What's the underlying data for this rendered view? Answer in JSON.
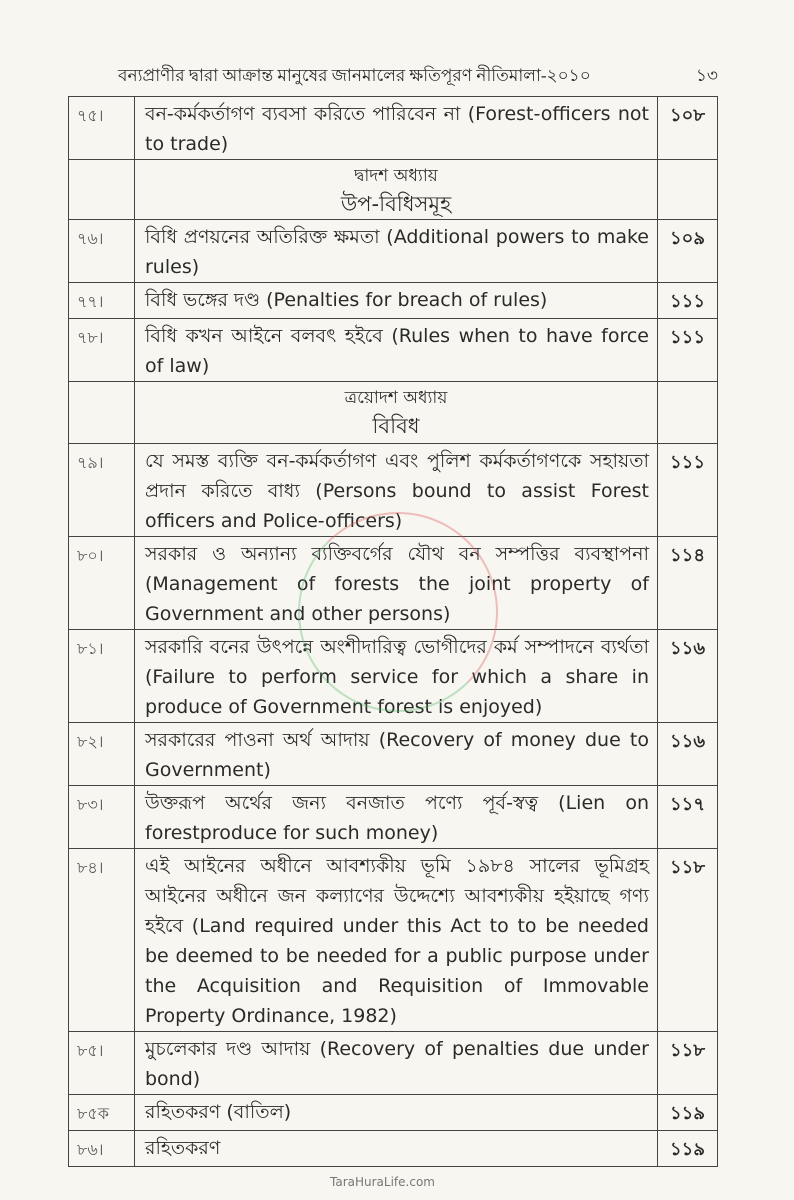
{
  "header": {
    "title": "বন্যপ্রাণীর দ্বারা আক্রান্ত মানুষের জানমালের ক্ষতিপূরণ নীতিমালা-২০১০",
    "page_number": "১৩"
  },
  "rows": [
    {
      "num": "৭৫।",
      "text": "বন-কর্মকর্তাগণ ব্যবসা করিতে পারিবেন না (Forest-officers not to trade)",
      "page": "১০৮"
    },
    {
      "chapter": "দ্বাদশ অধ্যায়",
      "chapter_title": "উপ-বিধিসমূহ"
    },
    {
      "num": "৭৬।",
      "text": "বিধি প্রণয়নের অতিরিক্ত ক্ষমতা (Additional powers to make rules)",
      "page": "১০৯"
    },
    {
      "num": "৭৭।",
      "text": "বিধি ভঙ্গের দণ্ড (Penalties for breach of rules)",
      "page": "১১১"
    },
    {
      "num": "৭৮।",
      "text": "বিধি কখন আইনে বলবৎ হইবে (Rules when to have force of law)",
      "page": "১১১"
    },
    {
      "chapter": "ত্রয়োদশ অধ্যায়",
      "chapter_title": "বিবিধ"
    },
    {
      "num": "৭৯।",
      "text": "যে সমস্ত ব্যক্তি বন-কর্মকর্তাগণ এবং পুলিশ কর্মকর্তাগণকে সহায়তা প্রদান করিতে বাধ্য (Persons bound to assist Forest officers and Police-officers)",
      "page": "১১১"
    },
    {
      "num": "৮০।",
      "text": "সরকার ও অন্যান্য ব্যক্তিবর্গের যৌথ বন সম্পত্তির ব্যবস্থাপনা (Management of forests the joint property of Government and other persons)",
      "page": "১১৪"
    },
    {
      "num": "৮১।",
      "text": "সরকারি বনের উৎপন্নে অংশীদারিত্ব ভোগীদের কর্ম সম্পাদনে ব্যর্থতা (Failure to perform service for which a share in produce of Government forest is enjoyed)",
      "page": "১১৬"
    },
    {
      "num": "৮২।",
      "text": "সরকারের পাওনা অর্থ আদায় (Recovery of money due to Government)",
      "page": "১১৬"
    },
    {
      "num": "৮৩।",
      "text": "উক্তরূপ অর্থের জন্য বনজাত পণ্যে পূর্ব-স্বত্ব (Lien on forestproduce for such money)",
      "page": "১১৭"
    },
    {
      "num": "৮৪।",
      "text": "এই আইনের অধীনে আবশ্যকীয় ভূমি ১৯৮৪ সালের ভূমিগ্রহ আইনের অধীনে জন কল্যাণের উদ্দেশ্যে আবশ্যকীয় হইয়াছে গণ্য হইবে (Land required under this Act to to be needed be deemed to be needed for a public purpose under the Acquisition and Requisition of Immovable Property Ordinance, 1982)",
      "page": "১১৮"
    },
    {
      "num": "৮৫।",
      "text": "মুচলেকার দণ্ড আদায় (Recovery of penalties due under bond)",
      "page": "১১৮"
    },
    {
      "num": "৮৫ক",
      "text": "রহিতকরণ (বাতিল)",
      "page": "১১৯"
    },
    {
      "num": "৮৬।",
      "text": "রহিতকরণ",
      "page": "১১৯"
    }
  ],
  "watermark": "TaraHuraLife.com"
}
